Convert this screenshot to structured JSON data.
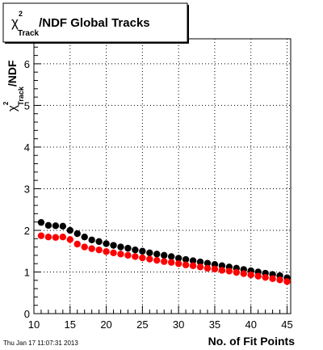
{
  "chart_data": {
    "type": "scatter",
    "title": {
      "chi": "χ",
      "exponent": "2",
      "subscript": "Track",
      "rest": "/NDF  Global Tracks"
    },
    "ylabel": {
      "chi": "χ",
      "exponent": "2",
      "subscript": "Track",
      "rest": "/NDF"
    },
    "xlabel": "No. of Fit Points",
    "xlim": [
      10,
      45.5
    ],
    "ylim": [
      0,
      6.6
    ],
    "xticks": [
      10,
      15,
      20,
      25,
      30,
      35,
      40,
      45
    ],
    "yticks": [
      0,
      1,
      2,
      3,
      4,
      5,
      6
    ],
    "grid": true,
    "x": [
      11,
      12,
      13,
      14,
      15,
      16,
      17,
      18,
      19,
      20,
      21,
      22,
      23,
      24,
      25,
      26,
      27,
      28,
      29,
      30,
      31,
      32,
      33,
      34,
      35,
      36,
      37,
      38,
      39,
      40,
      41,
      42,
      43,
      44,
      45
    ],
    "series": [
      {
        "color": "#000000",
        "values": [
          2.19,
          2.12,
          2.11,
          2.1,
          2.0,
          1.92,
          1.84,
          1.77,
          1.73,
          1.68,
          1.64,
          1.6,
          1.57,
          1.53,
          1.5,
          1.46,
          1.43,
          1.4,
          1.37,
          1.33,
          1.3,
          1.27,
          1.24,
          1.21,
          1.18,
          1.15,
          1.12,
          1.09,
          1.06,
          1.03,
          1.0,
          0.97,
          0.94,
          0.91,
          0.86
        ]
      },
      {
        "color": "#ff0000",
        "values": [
          1.87,
          1.84,
          1.83,
          1.84,
          1.78,
          1.67,
          1.6,
          1.56,
          1.53,
          1.49,
          1.46,
          1.43,
          1.4,
          1.37,
          1.34,
          1.31,
          1.28,
          1.25,
          1.23,
          1.2,
          1.17,
          1.15,
          1.12,
          1.09,
          1.07,
          1.04,
          1.02,
          0.99,
          0.96,
          0.93,
          0.9,
          0.87,
          0.84,
          0.81,
          0.77
        ]
      }
    ]
  },
  "timestamp": "Thu Jan 17 11:07:31 2013"
}
